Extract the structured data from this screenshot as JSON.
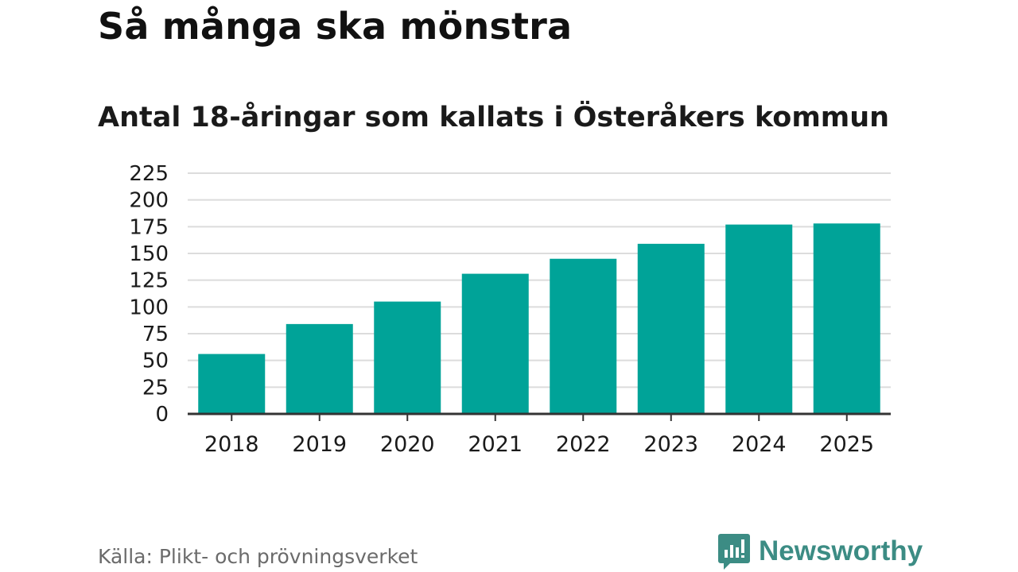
{
  "header": {
    "title": "Så många ska mönstra",
    "subtitle": "Antal 18-åringar som kallats i Österåkers kommun"
  },
  "chart_data": {
    "type": "bar",
    "title": "Så många ska mönstra",
    "subtitle": "Antal 18-åringar som kallats i Österåkers kommun",
    "categories": [
      "2018",
      "2019",
      "2020",
      "2021",
      "2022",
      "2023",
      "2024",
      "2025"
    ],
    "values": [
      56,
      84,
      105,
      131,
      145,
      159,
      177,
      178
    ],
    "xlabel": "",
    "ylabel": "",
    "ylim": [
      0,
      225
    ],
    "yticks": [
      0,
      25,
      50,
      75,
      100,
      125,
      150,
      175,
      200,
      225
    ],
    "grid": true,
    "bar_color": "#00a398"
  },
  "footer": {
    "source": "Källa: Plikt- och prövningsverket",
    "brand": "Newsworthy",
    "brand_color": "#3c8c84"
  }
}
